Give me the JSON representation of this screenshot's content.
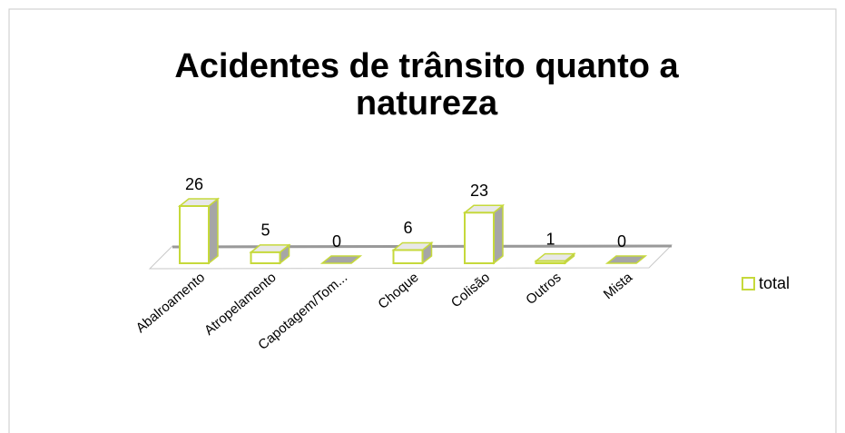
{
  "chart_data": {
    "type": "bar3d",
    "title_lines": [
      "Acidentes de trânsito quanto a",
      "natureza"
    ],
    "categories": [
      "Abalroamento",
      "Atropelamento",
      "Capotagem/Tom...",
      "Choque",
      "Colisão",
      "Outros",
      "Mista"
    ],
    "series": [
      {
        "name": "total",
        "color": "#c6d93b",
        "values": [
          26,
          5,
          0,
          6,
          23,
          1,
          0
        ]
      }
    ],
    "legend": "right"
  }
}
